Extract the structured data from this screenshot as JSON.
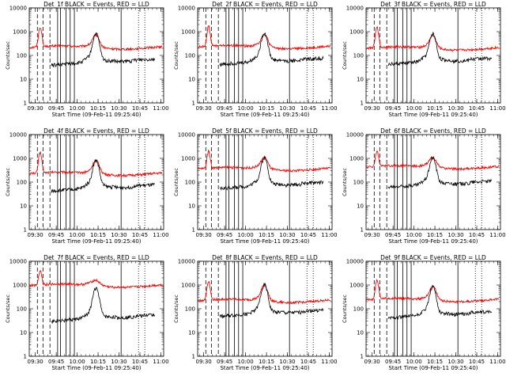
{
  "chart_data": {
    "type": "line",
    "panel_title_suffix": "BLACK = Events, RED = LLD",
    "xlabel": "Start Time (09-Feb-11 09:25:40)",
    "ylabel": "Counts/sec",
    "yscale": "log",
    "ylim": [
      1,
      10000
    ],
    "y_ticks": [
      1,
      10,
      100,
      1000,
      10000
    ],
    "x_range_min": [
      25.67,
      122
    ],
    "x_ticks": [
      {
        "min": 30,
        "label": "09:30"
      },
      {
        "min": 45,
        "label": "09:45"
      },
      {
        "min": 60,
        "label": "10:00"
      },
      {
        "min": 75,
        "label": "10:15"
      },
      {
        "min": 90,
        "label": "10:30"
      },
      {
        "min": 105,
        "label": "10:45"
      },
      {
        "min": 120,
        "label": "11:00"
      }
    ],
    "colors": {
      "events": "#000000",
      "lld": "#ff0000"
    },
    "series": [
      {
        "name": "Events",
        "color": "#000000"
      },
      {
        "name": "LLD",
        "color": "#ff0000"
      }
    ],
    "markers": {
      "dashed": [
        31.5,
        35.5,
        40.5
      ],
      "solid": [
        46,
        48,
        52,
        55,
        58,
        91.5
      ],
      "dotted": [
        104,
        108.5
      ]
    },
    "detectors": [
      {
        "title": "Det_1f",
        "events_base": 65,
        "events_peak": 700,
        "lld_base": 230,
        "lld_peak": 650,
        "lld_spike": 1300
      },
      {
        "title": "Det_2f",
        "events_base": 70,
        "events_peak": 750,
        "lld_base": 240,
        "lld_peak": 700,
        "lld_spike": 1400
      },
      {
        "title": "Det_3f",
        "events_base": 70,
        "events_peak": 700,
        "lld_base": 210,
        "lld_peak": 600,
        "lld_spike": 1300
      },
      {
        "title": "Det_4f",
        "events_base": 70,
        "events_peak": 700,
        "lld_base": 240,
        "lld_peak": 750,
        "lld_spike": 1500
      },
      {
        "title": "Det_5f",
        "events_base": 90,
        "events_peak": 900,
        "lld_base": 380,
        "lld_peak": 1000,
        "lld_spike": 1600
      },
      {
        "title": "Det_6f",
        "events_base": 100,
        "events_peak": 900,
        "lld_base": 450,
        "lld_peak": 1000,
        "lld_spike": 1500
      },
      {
        "title": "Det_7f",
        "events_base": 50,
        "events_peak": 650,
        "lld_base": 1000,
        "lld_peak": 1300,
        "lld_spike": 3000
      },
      {
        "title": "Det_8f",
        "events_base": 80,
        "events_peak": 900,
        "lld_base": 230,
        "lld_peak": 900,
        "lld_spike": 1200
      },
      {
        "title": "Det_9f",
        "events_base": 70,
        "events_peak": 700,
        "lld_base": 250,
        "lld_peak": 800,
        "lld_spike": 1300
      }
    ]
  }
}
